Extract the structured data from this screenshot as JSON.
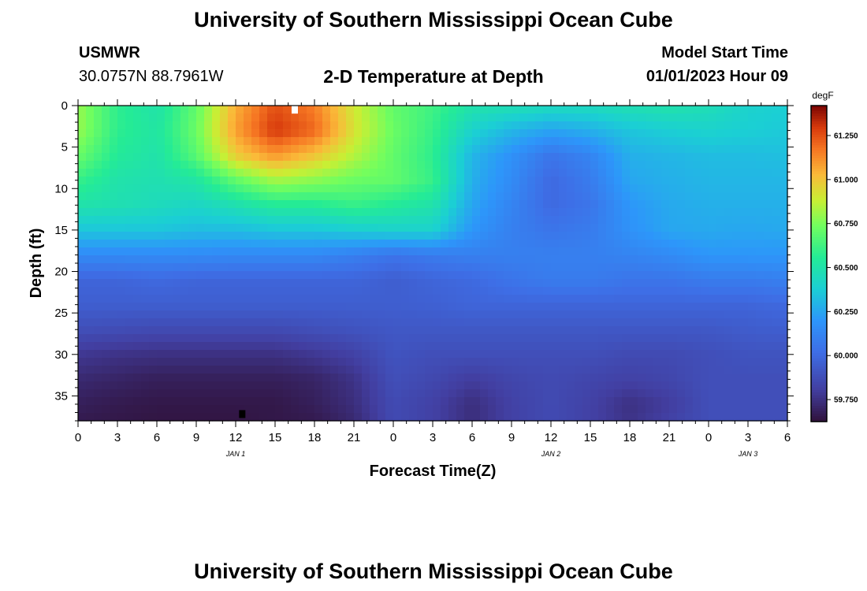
{
  "header": {
    "title": "University of Southern Mississippi Ocean Cube",
    "station": "USMWR",
    "coordinates": "30.0757N  88.7961W",
    "model_start_label": "Model Start Time",
    "model_start_value": "01/01/2023 Hour 09"
  },
  "footer": {
    "title": "University of Southern Mississippi Ocean Cube"
  },
  "chart_data": {
    "type": "heatmap",
    "title": "2-D Temperature at Depth",
    "xlabel": "Forecast Time(Z)",
    "ylabel": "Depth (ft)",
    "x_tick_labels": [
      "0",
      "3",
      "6",
      "9",
      "12",
      "15",
      "18",
      "21",
      "0",
      "3",
      "6",
      "9",
      "12",
      "15",
      "18",
      "21",
      "0",
      "3",
      "6"
    ],
    "x_range_hours": [
      0,
      54
    ],
    "date_labels": [
      {
        "label": "JAN 1",
        "hour": 12
      },
      {
        "label": "JAN 2",
        "hour": 36
      },
      {
        "label": "JAN 3",
        "hour": 51
      }
    ],
    "y_ticks": [
      0,
      5,
      10,
      15,
      20,
      25,
      30,
      35
    ],
    "y_range": [
      0,
      38
    ],
    "y_inverted": true,
    "colorbar": {
      "unit": "degF",
      "range": [
        59.625,
        61.42
      ],
      "ticks": [
        "61.250",
        "61.000",
        "60.750",
        "60.500",
        "60.250",
        "60.000",
        "59.750"
      ],
      "tick_values": [
        61.25,
        61.0,
        60.75,
        60.5,
        60.25,
        60.0,
        59.75
      ]
    },
    "grid": false,
    "markers": [
      {
        "name": "max",
        "color": "#ffffff",
        "hour": 16.5,
        "depth": 0.3
      },
      {
        "name": "min",
        "color": "#000000",
        "hour": 12.5,
        "depth": 37
      }
    ],
    "hours": [
      0,
      3,
      6,
      9,
      12,
      15,
      18,
      21,
      24,
      27,
      30,
      33,
      36,
      39,
      42,
      45,
      48,
      51,
      54
    ],
    "depths": [
      0,
      3,
      6,
      9,
      12,
      15,
      18,
      21,
      24,
      27,
      30,
      33,
      36,
      38
    ],
    "temperature_degF": [
      [
        60.8,
        60.58,
        60.5,
        60.7,
        61.05,
        61.25,
        61.15,
        60.9,
        60.7,
        60.62,
        60.5,
        60.48,
        60.45,
        60.45,
        60.48,
        60.5,
        60.47,
        60.4,
        60.38
      ],
      [
        60.8,
        60.58,
        60.52,
        60.72,
        61.08,
        61.3,
        61.2,
        60.92,
        60.72,
        60.6,
        60.4,
        60.3,
        60.24,
        60.28,
        60.35,
        60.38,
        60.4,
        60.38,
        60.36
      ],
      [
        60.72,
        60.55,
        60.5,
        60.68,
        60.98,
        61.1,
        61.0,
        60.85,
        60.7,
        60.58,
        60.3,
        60.18,
        60.05,
        60.12,
        60.28,
        60.3,
        60.32,
        60.32,
        60.33
      ],
      [
        60.6,
        60.5,
        60.48,
        60.52,
        60.7,
        60.82,
        60.78,
        60.72,
        60.7,
        60.6,
        60.28,
        60.15,
        60.0,
        60.08,
        60.25,
        60.28,
        60.3,
        60.3,
        60.3
      ],
      [
        60.5,
        60.48,
        60.45,
        60.42,
        60.48,
        60.55,
        60.55,
        60.6,
        60.55,
        60.5,
        60.25,
        60.12,
        60.0,
        60.05,
        60.2,
        60.26,
        60.28,
        60.28,
        60.28
      ],
      [
        60.35,
        60.35,
        60.35,
        60.32,
        60.32,
        60.35,
        60.35,
        60.38,
        60.4,
        60.4,
        60.2,
        60.1,
        60.05,
        60.08,
        60.18,
        60.25,
        60.26,
        60.25,
        60.26
      ],
      [
        60.15,
        60.15,
        60.15,
        60.15,
        60.14,
        60.14,
        60.14,
        60.1,
        60.05,
        60.08,
        60.1,
        60.1,
        60.1,
        60.1,
        60.12,
        60.15,
        60.2,
        60.2,
        60.2
      ],
      [
        59.98,
        59.98,
        60.0,
        59.98,
        59.98,
        59.98,
        59.98,
        59.98,
        59.95,
        59.98,
        60.0,
        60.05,
        60.08,
        60.08,
        60.05,
        60.05,
        60.08,
        60.08,
        60.1
      ],
      [
        59.95,
        59.95,
        59.95,
        59.95,
        59.95,
        59.95,
        59.95,
        59.95,
        59.95,
        59.96,
        59.98,
        59.98,
        59.98,
        59.98,
        59.98,
        59.98,
        59.98,
        59.98,
        60.0
      ],
      [
        59.88,
        59.87,
        59.86,
        59.86,
        59.86,
        59.86,
        59.88,
        59.9,
        59.92,
        59.92,
        59.92,
        59.92,
        59.92,
        59.92,
        59.92,
        59.92,
        59.92,
        59.94,
        59.95
      ],
      [
        59.78,
        59.76,
        59.75,
        59.75,
        59.75,
        59.75,
        59.78,
        59.82,
        59.9,
        59.88,
        59.88,
        59.88,
        59.88,
        59.88,
        59.86,
        59.86,
        59.88,
        59.9,
        59.9
      ],
      [
        59.72,
        59.7,
        59.68,
        59.68,
        59.68,
        59.68,
        59.7,
        59.76,
        59.88,
        59.85,
        59.8,
        59.84,
        59.86,
        59.84,
        59.82,
        59.84,
        59.88,
        59.88,
        59.88
      ],
      [
        59.68,
        59.66,
        59.65,
        59.65,
        59.65,
        59.65,
        59.68,
        59.74,
        59.86,
        59.82,
        59.74,
        59.82,
        59.86,
        59.82,
        59.75,
        59.8,
        59.88,
        59.88,
        59.88
      ],
      [
        59.66,
        59.65,
        59.64,
        59.64,
        59.64,
        59.65,
        59.66,
        59.72,
        59.86,
        59.82,
        59.74,
        59.82,
        59.86,
        59.82,
        59.76,
        59.82,
        59.88,
        59.88,
        59.88
      ]
    ]
  }
}
